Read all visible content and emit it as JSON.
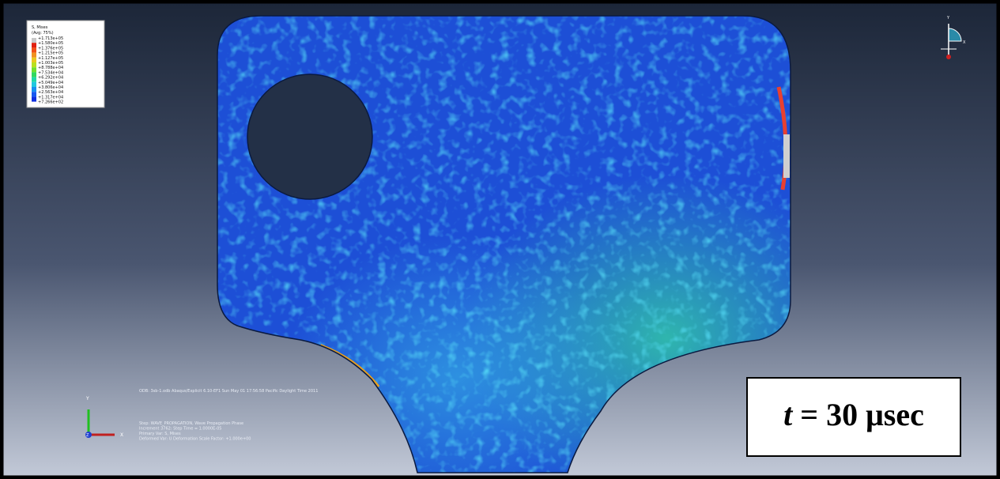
{
  "legend": {
    "title": "S, Mises",
    "subtitle": "(Avg: 75%)",
    "values": [
      "+1.713e+05",
      "+1.580e+05",
      "+1.376e+05",
      "+1.215e+05",
      "+1.127e+05",
      "+1.003e+05",
      "+8.788e+04",
      "+7.534e+04",
      "+6.292e+04",
      "+5.049e+04",
      "+3.806e+04",
      "+2.563e+04",
      "+1.317e+04",
      "+7.266e+02"
    ]
  },
  "info": {
    "odb": "ODB: 3sb-1.odb    Abaqus/Explicit 6.10-EF1    Sun May 01 17:56:58 Pacific Daylight Time 2011",
    "lines": [
      "Step: WAVE_PROPAGATION, Wave Propagation Phase",
      "Increment    3762: Step Time =    1.0000E-05",
      "Primary Var: S, Mises",
      "Deformed Var: U   Deformation Scale Factor: +1.000e+00"
    ]
  },
  "triad": {
    "y": "Y",
    "x": "X",
    "z": "Z"
  },
  "view_triad": {
    "y": "Y",
    "x": "X"
  },
  "time_label": {
    "variable": "t",
    "rest": "= 30 μsec"
  }
}
